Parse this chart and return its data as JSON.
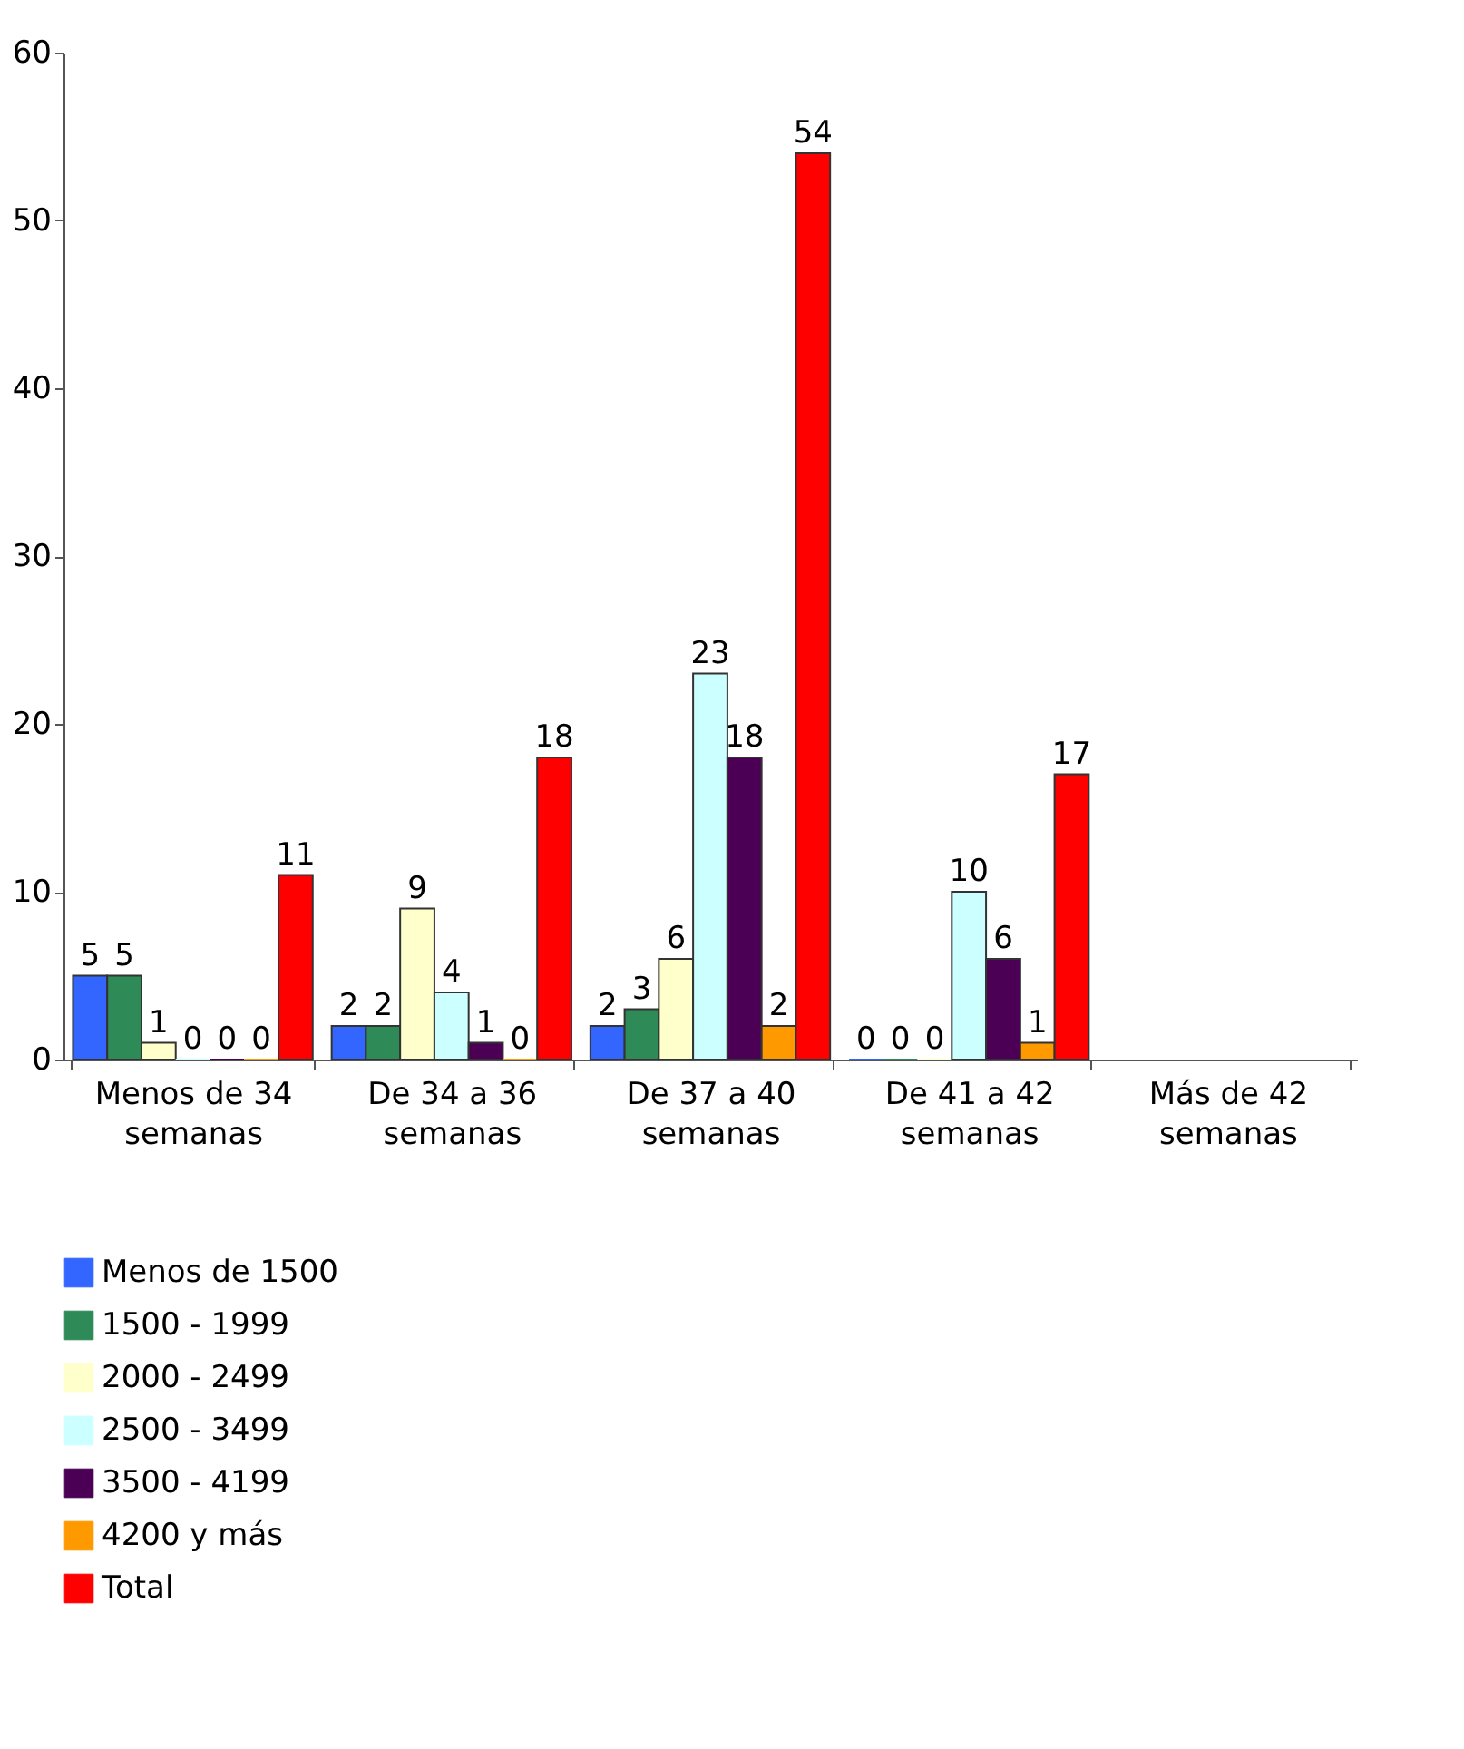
{
  "chart_data": {
    "type": "bar",
    "categories": [
      "Menos de 34 semanas",
      "De 34 a 36 semanas",
      "De 37 a 40 semanas",
      "De 41 a 42 semanas",
      "Más de 42 semanas"
    ],
    "series": [
      {
        "name": "Menos de 1500",
        "color": "#3366ff",
        "values": [
          5,
          2,
          2,
          0,
          null
        ]
      },
      {
        "name": "1500 - 1999",
        "color": "#2e8b57",
        "values": [
          5,
          2,
          3,
          0,
          null
        ]
      },
      {
        "name": "2000 - 2499",
        "color": "#ffffcc",
        "values": [
          1,
          9,
          6,
          0,
          null
        ]
      },
      {
        "name": "2500 - 3499",
        "color": "#ccffff",
        "values": [
          0,
          4,
          23,
          10,
          null
        ]
      },
      {
        "name": "3500 - 4199",
        "color": "#4b0055",
        "values": [
          0,
          1,
          18,
          6,
          null
        ]
      },
      {
        "name": "4200 y más",
        "color": "#ff9900",
        "values": [
          0,
          0,
          2,
          1,
          null
        ]
      },
      {
        "name": "Total",
        "color": "#ff0000",
        "values": [
          11,
          18,
          54,
          17,
          null
        ]
      }
    ],
    "ylim": [
      0,
      60
    ],
    "yticks": [
      0,
      10,
      20,
      30,
      40,
      50,
      60
    ],
    "grid": false,
    "legend": "bottom",
    "data_labels": true
  }
}
